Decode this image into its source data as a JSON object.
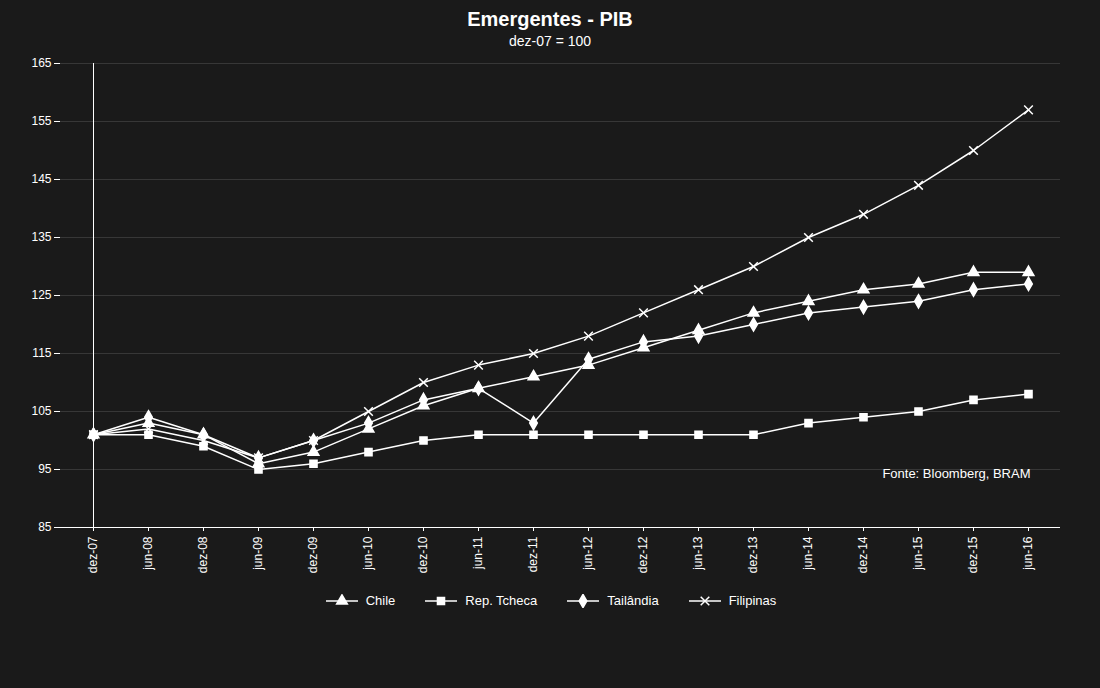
{
  "chart_data": {
    "type": "line",
    "title": "Emergentes - PIB",
    "subtitle": "dez-07 = 100",
    "annotation": "Fonte: Bloomberg, BRAM",
    "categories": [
      "dez-07",
      "jun-08",
      "dez-08",
      "jun-09",
      "dez-09",
      "jun-10",
      "dez-10",
      "jun-11",
      "dez-11",
      "jun-12",
      "dez-12",
      "jun-13",
      "dez-13",
      "jun-14",
      "dez-14",
      "jun-15",
      "dez-15",
      "jun-16"
    ],
    "series": [
      {
        "name": "Chile",
        "color": "#ffffff",
        "marker": "triangle",
        "values": [
          101,
          103,
          101,
          96,
          98,
          102,
          106,
          109,
          111,
          113,
          116,
          119,
          122,
          124,
          126,
          127,
          129,
          129
        ]
      },
      {
        "name": "Rep. Tcheca",
        "color": "#ffffff",
        "marker": "square",
        "values": [
          101,
          101,
          99,
          95,
          96,
          98,
          100,
          101,
          101,
          101,
          101,
          101,
          101,
          103,
          104,
          105,
          107,
          108
        ]
      },
      {
        "name": "Tailândia",
        "color": "#ffffff",
        "marker": "diamond",
        "values": [
          101,
          104,
          101,
          97,
          100,
          103,
          107,
          109,
          103,
          114,
          117,
          118,
          120,
          122,
          123,
          124,
          126,
          127
        ]
      },
      {
        "name": "Filipinas",
        "color": "#ffffff",
        "marker": "x",
        "values": [
          101,
          102,
          100,
          97,
          100,
          105,
          110,
          113,
          115,
          118,
          122,
          126,
          130,
          135,
          139,
          144,
          150,
          157
        ]
      }
    ],
    "ylim": [
      85,
      165
    ],
    "yticks": [
      85,
      95,
      105,
      115,
      125,
      135,
      145,
      155,
      165
    ],
    "grid": true,
    "legend": "bottom"
  }
}
